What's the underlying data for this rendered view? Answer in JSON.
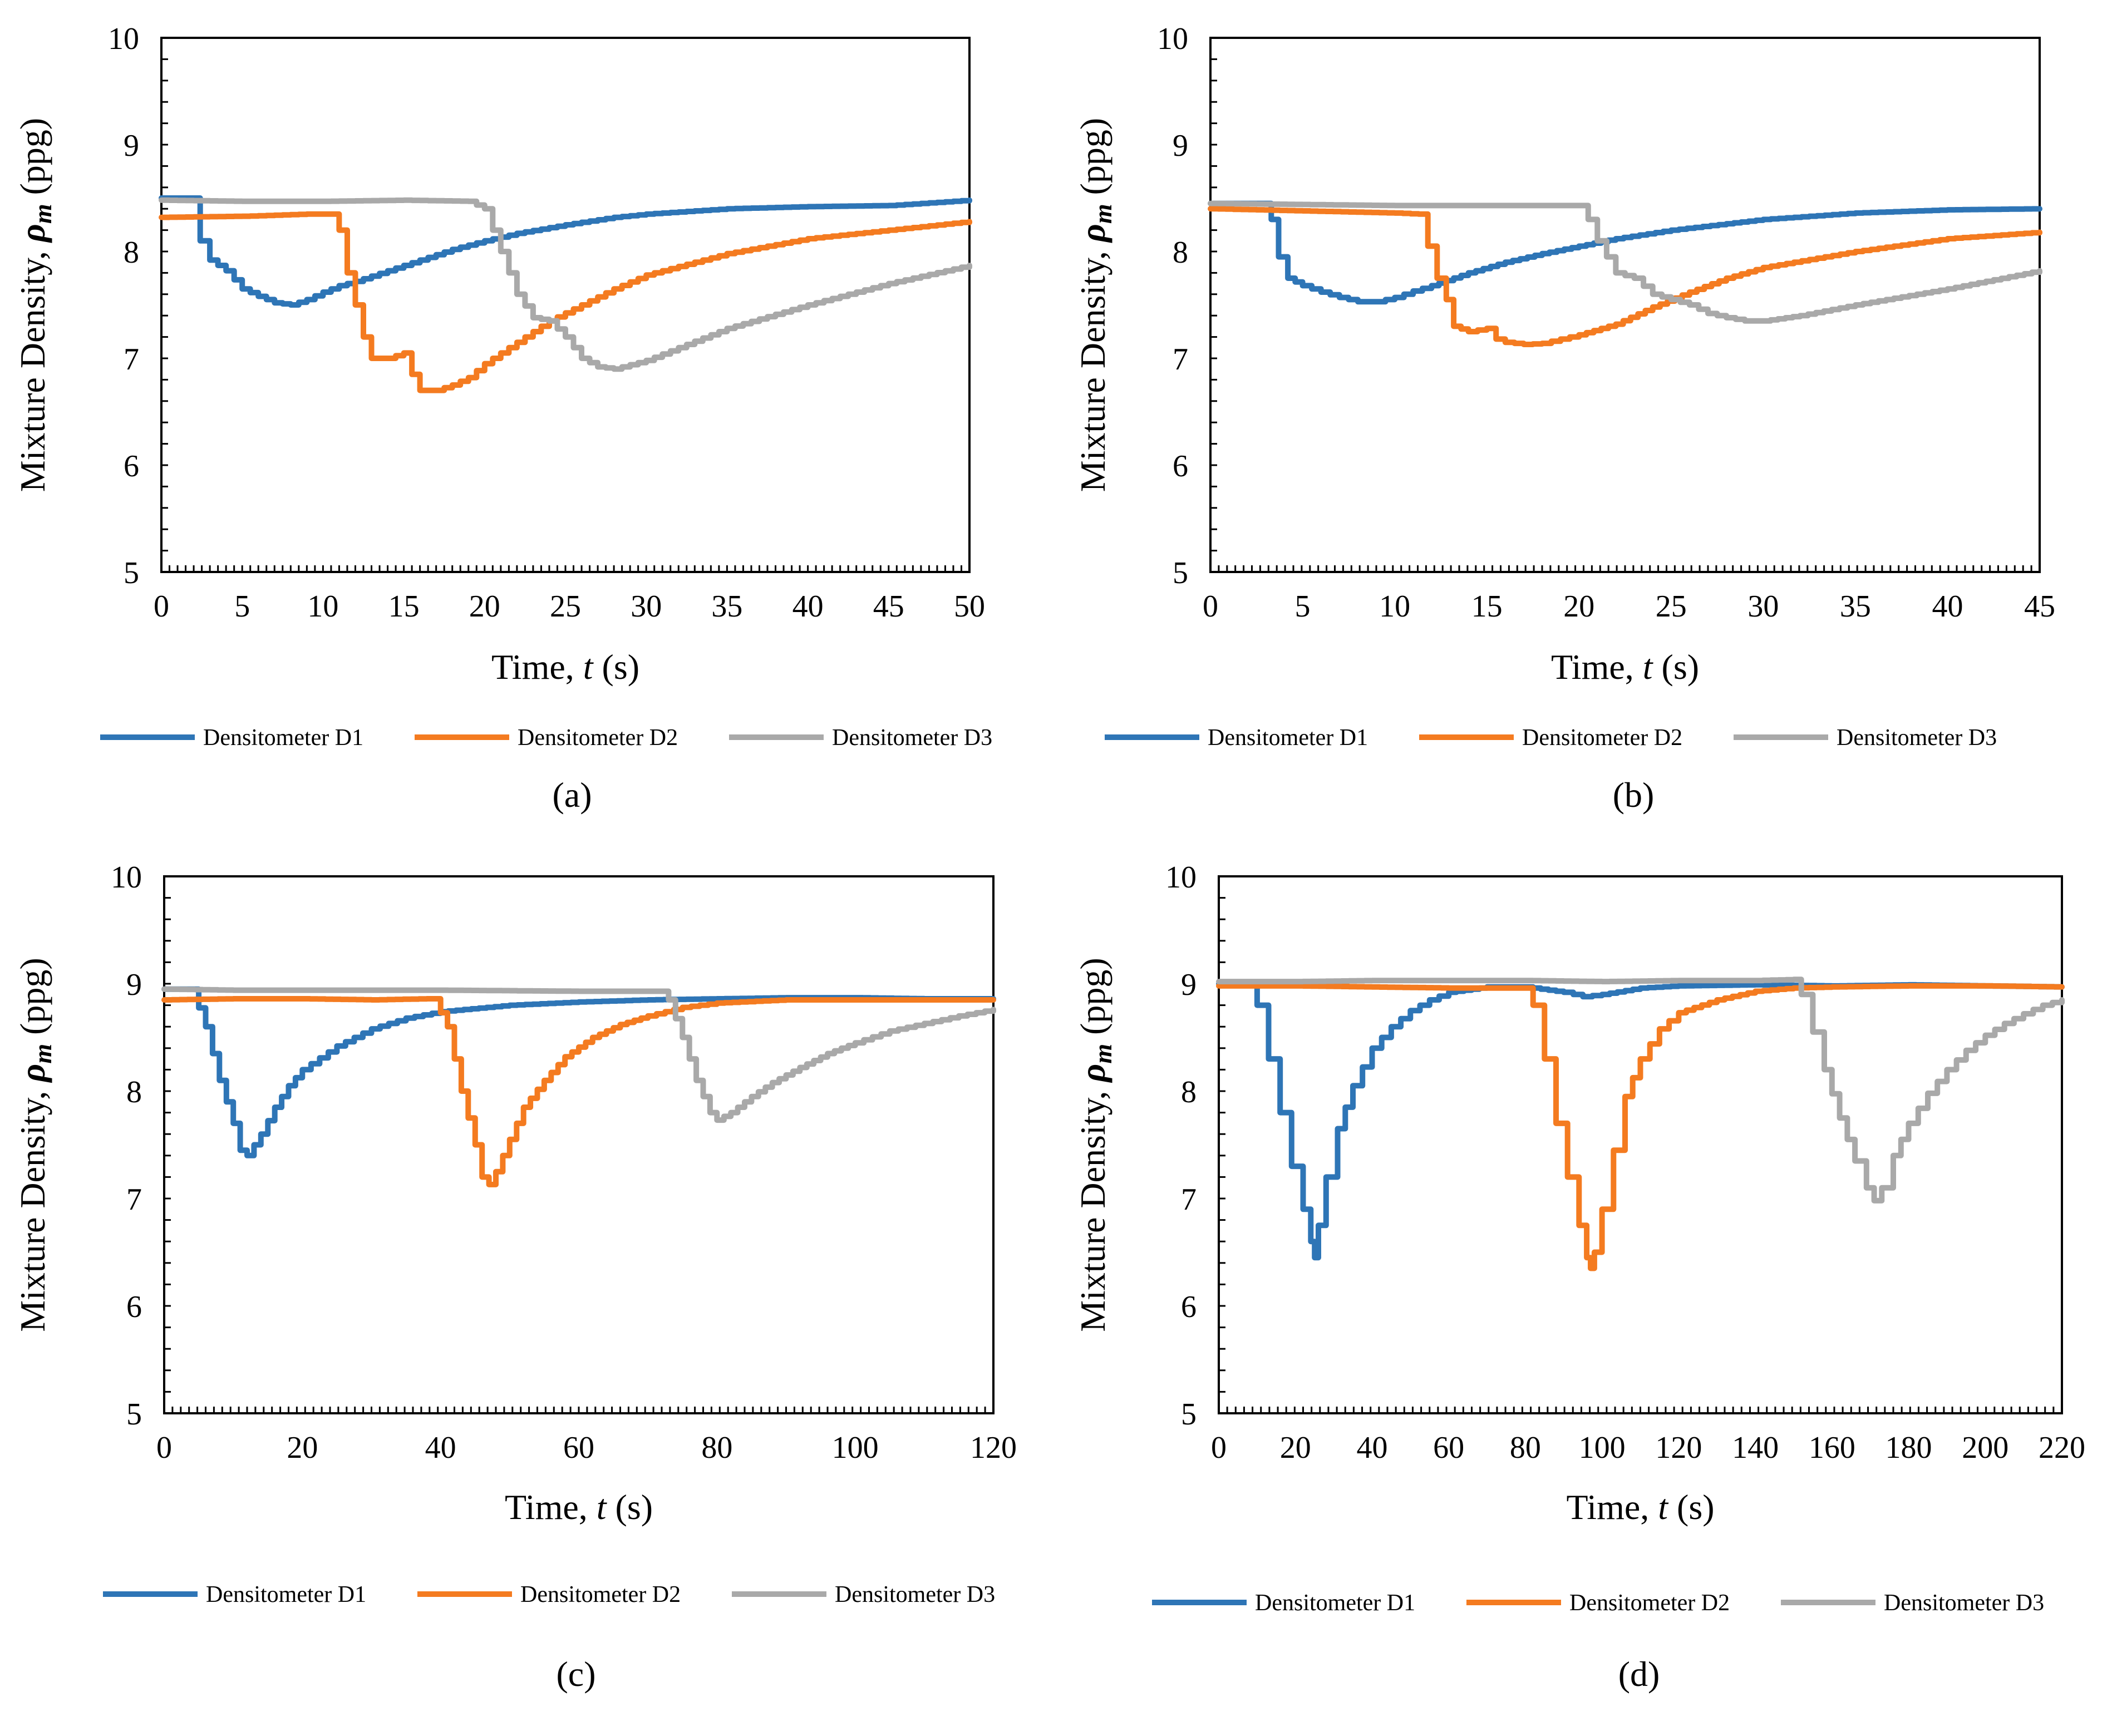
{
  "colors": {
    "d1": "#2E75B6",
    "d2": "#F47B20",
    "d3": "#A9A9A9"
  },
  "chart_data": [
    {
      "type": "line",
      "caption": "(a)",
      "ylabel": "Mixture Density, ρm (ppg)",
      "ylabel_prefix": "Mixture Density, ",
      "ylabel_symbol": "ρ",
      "ylabel_sub": "m",
      "ylabel_suffix": " (ppg)",
      "xlabel_prefix": "Time, ",
      "xlabel_var": "t",
      "xlabel_suffix": " (s)",
      "xlim": [
        0,
        50
      ],
      "ylim": [
        5,
        10
      ],
      "xticks": [
        0,
        5,
        10,
        15,
        20,
        25,
        30,
        35,
        40,
        45,
        50
      ],
      "yticks": [
        5,
        6,
        7,
        8,
        9,
        10
      ],
      "legend": [
        "Densitometer D1",
        "Densitometer D2",
        "Densitometer D3"
      ],
      "series": [
        {
          "name": "Densitometer D1",
          "color_key": "d1",
          "x": [
            0,
            2,
            2.4,
            3,
            4,
            5,
            6,
            7,
            8,
            9,
            10,
            11,
            12,
            14,
            16,
            18,
            20,
            22,
            25,
            28,
            30,
            35,
            40,
            45,
            50
          ],
          "y": [
            8.5,
            8.5,
            8.1,
            7.92,
            7.82,
            7.65,
            7.58,
            7.52,
            7.5,
            7.55,
            7.62,
            7.68,
            7.72,
            7.82,
            7.92,
            8.02,
            8.1,
            8.17,
            8.25,
            8.32,
            8.35,
            8.4,
            8.42,
            8.43,
            8.48
          ]
        },
        {
          "name": "Densitometer D2",
          "color_key": "d2",
          "x": [
            0,
            5,
            9,
            10.5,
            11,
            11.5,
            12,
            12.5,
            13,
            14,
            15,
            15.5,
            16,
            17,
            18,
            19,
            20,
            22,
            24,
            26,
            28,
            30,
            35,
            40,
            45,
            50
          ],
          "y": [
            8.32,
            8.33,
            8.35,
            8.35,
            8.2,
            7.8,
            7.5,
            7.2,
            7.0,
            7.0,
            7.05,
            6.85,
            6.7,
            6.7,
            6.75,
            6.82,
            6.95,
            7.15,
            7.35,
            7.5,
            7.65,
            7.78,
            7.98,
            8.12,
            8.2,
            8.28
          ]
        },
        {
          "name": "Densitometer D3",
          "color_key": "d3",
          "x": [
            0,
            5,
            10,
            15,
            19,
            20,
            20.5,
            21,
            21.5,
            22,
            23,
            24,
            25,
            26,
            27,
            28,
            30,
            32,
            35,
            40,
            45,
            50
          ],
          "y": [
            8.48,
            8.47,
            8.47,
            8.48,
            8.47,
            8.4,
            8.2,
            8.0,
            7.8,
            7.6,
            7.38,
            7.35,
            7.2,
            7.0,
            6.92,
            6.9,
            6.98,
            7.1,
            7.28,
            7.5,
            7.7,
            7.87
          ]
        }
      ]
    },
    {
      "type": "line",
      "caption": "(b)",
      "ylabel": "Mixture Density, ρm (ppg)",
      "ylabel_prefix": "Mixture Density, ",
      "ylabel_symbol": "ρ",
      "ylabel_sub": "m",
      "ylabel_suffix": " (ppg)",
      "xlabel_prefix": "Time, ",
      "xlabel_var": "t",
      "xlabel_suffix": " (s)",
      "xlim": [
        0,
        45
      ],
      "ylim": [
        5,
        10
      ],
      "xticks": [
        0,
        5,
        10,
        15,
        20,
        25,
        30,
        35,
        40,
        45
      ],
      "yticks": [
        5,
        6,
        7,
        8,
        9,
        10
      ],
      "legend": [
        "Densitometer D1",
        "Densitometer D2",
        "Densitometer D3"
      ],
      "series": [
        {
          "name": "Densitometer D1",
          "color_key": "d1",
          "x": [
            0,
            3,
            3.3,
            3.7,
            4.2,
            5,
            6,
            7,
            8,
            9,
            10,
            11,
            12,
            14,
            16,
            18,
            20,
            22,
            25,
            28,
            30,
            35,
            40,
            45
          ],
          "y": [
            8.45,
            8.45,
            8.3,
            7.95,
            7.75,
            7.68,
            7.62,
            7.57,
            7.53,
            7.53,
            7.57,
            7.63,
            7.68,
            7.8,
            7.9,
            7.98,
            8.05,
            8.12,
            8.2,
            8.26,
            8.3,
            8.36,
            8.39,
            8.4
          ]
        },
        {
          "name": "Densitometer D2",
          "color_key": "d2",
          "x": [
            0,
            5,
            10,
            11.3,
            11.8,
            12.3,
            12.8,
            13.2,
            14,
            15,
            15.5,
            16,
            17,
            18,
            19,
            20,
            22,
            24,
            26,
            28,
            30,
            35,
            40,
            45
          ],
          "y": [
            8.4,
            8.38,
            8.36,
            8.35,
            8.05,
            7.75,
            7.55,
            7.3,
            7.25,
            7.28,
            7.18,
            7.15,
            7.13,
            7.14,
            7.18,
            7.22,
            7.32,
            7.48,
            7.62,
            7.75,
            7.85,
            8.0,
            8.12,
            8.18
          ]
        },
        {
          "name": "Densitometer D3",
          "color_key": "d3",
          "x": [
            0,
            5,
            10,
            15,
            20,
            20.5,
            21,
            21.5,
            22,
            23,
            24,
            25,
            26,
            27,
            28,
            29,
            30,
            32,
            35,
            40,
            45
          ],
          "y": [
            8.45,
            8.44,
            8.43,
            8.43,
            8.43,
            8.3,
            8.1,
            7.95,
            7.8,
            7.75,
            7.6,
            7.55,
            7.5,
            7.42,
            7.38,
            7.35,
            7.35,
            7.4,
            7.5,
            7.65,
            7.82
          ]
        }
      ]
    },
    {
      "type": "line",
      "caption": "(c)",
      "ylabel": "Mixture Density, ρm (ppg)",
      "ylabel_prefix": "Mixture Density, ",
      "ylabel_symbol": "ρ",
      "ylabel_sub": "m",
      "ylabel_suffix": " (ppg)",
      "xlabel_prefix": "Time, ",
      "xlabel_var": "t",
      "xlabel_suffix": " (s)",
      "xlim": [
        0,
        120
      ],
      "ylim": [
        5,
        10
      ],
      "xticks": [
        0,
        20,
        40,
        60,
        80,
        100,
        120
      ],
      "yticks": [
        5,
        6,
        7,
        8,
        9,
        10
      ],
      "legend": [
        "Densitometer D1",
        "Densitometer D2",
        "Densitometer D3"
      ],
      "series": [
        {
          "name": "Densitometer D1",
          "color_key": "d1",
          "x": [
            0,
            4,
            6,
            8,
            10,
            11,
            12,
            14,
            16,
            18,
            20,
            25,
            30,
            35,
            40,
            50,
            60,
            70,
            80,
            90,
            100,
            110,
            120
          ],
          "y": [
            8.95,
            8.95,
            8.6,
            8.1,
            7.7,
            7.45,
            7.4,
            7.6,
            7.85,
            8.05,
            8.2,
            8.42,
            8.58,
            8.68,
            8.74,
            8.8,
            8.83,
            8.85,
            8.86,
            8.87,
            8.87,
            8.86,
            8.86
          ]
        },
        {
          "name": "Densitometer D2",
          "color_key": "d2",
          "x": [
            0,
            10,
            20,
            30,
            38,
            39,
            41,
            43,
            45,
            46,
            47,
            48,
            50,
            52,
            55,
            58,
            62,
            66,
            70,
            75,
            80,
            90,
            100,
            110,
            120
          ],
          "y": [
            8.85,
            8.86,
            8.86,
            8.85,
            8.86,
            8.86,
            8.6,
            8.0,
            7.5,
            7.2,
            7.13,
            7.25,
            7.55,
            7.85,
            8.1,
            8.32,
            8.5,
            8.62,
            8.7,
            8.78,
            8.82,
            8.85,
            8.85,
            8.85,
            8.85
          ]
        },
        {
          "name": "Densitometer D3",
          "color_key": "d3",
          "x": [
            0,
            10,
            20,
            40,
            60,
            72,
            73,
            75,
            77,
            79,
            80,
            82,
            85,
            88,
            92,
            96,
            100,
            105,
            110,
            115,
            120
          ],
          "y": [
            8.95,
            8.94,
            8.94,
            8.94,
            8.93,
            8.93,
            8.85,
            8.5,
            8.1,
            7.8,
            7.73,
            7.8,
            7.95,
            8.08,
            8.22,
            8.35,
            8.45,
            8.56,
            8.63,
            8.7,
            8.76
          ]
        }
      ]
    },
    {
      "type": "line",
      "caption": "(d)",
      "ylabel": "Mixture Density, ρm (ppg)",
      "ylabel_prefix": "Mixture Density, ",
      "ylabel_symbol": "ρ",
      "ylabel_sub": "m",
      "ylabel_suffix": " (ppg)",
      "xlabel_prefix": "Time, ",
      "xlabel_var": "t",
      "xlabel_suffix": " (s)",
      "xlim": [
        0,
        220
      ],
      "ylim": [
        5,
        10
      ],
      "xticks": [
        0,
        20,
        40,
        60,
        80,
        100,
        120,
        140,
        160,
        180,
        200,
        220
      ],
      "yticks": [
        5,
        6,
        7,
        8,
        9,
        10
      ],
      "legend": [
        "Densitometer D1",
        "Densitometer D2",
        "Densitometer D3"
      ],
      "series": [
        {
          "name": "Densitometer D1",
          "color_key": "d1",
          "x": [
            0,
            8,
            10,
            13,
            16,
            19,
            22,
            24,
            25,
            26,
            28,
            31,
            35,
            40,
            45,
            50,
            55,
            60,
            70,
            80,
            90,
            95,
            100,
            110,
            120,
            140,
            160,
            180,
            200,
            220
          ],
          "y": [
            9.0,
            9.0,
            8.8,
            8.3,
            7.8,
            7.3,
            6.9,
            6.6,
            6.45,
            6.75,
            7.2,
            7.65,
            8.05,
            8.4,
            8.6,
            8.75,
            8.85,
            8.92,
            8.97,
            8.97,
            8.92,
            8.88,
            8.9,
            8.96,
            8.98,
            8.99,
            8.98,
            8.99,
            8.98,
            8.97
          ]
        },
        {
          "name": "Densitometer D2",
          "color_key": "d2",
          "x": [
            0,
            20,
            40,
            60,
            80,
            82,
            85,
            88,
            91,
            94,
            96,
            97,
            98,
            100,
            103,
            106,
            110,
            115,
            120,
            130,
            140,
            150,
            160,
            180,
            200,
            220
          ],
          "y": [
            8.98,
            8.98,
            8.97,
            8.96,
            8.96,
            8.8,
            8.3,
            7.7,
            7.2,
            6.75,
            6.45,
            6.35,
            6.5,
            6.9,
            7.45,
            7.95,
            8.3,
            8.58,
            8.73,
            8.85,
            8.93,
            8.96,
            8.97,
            8.98,
            8.98,
            8.97
          ]
        },
        {
          "name": "Densitometer D3",
          "color_key": "d3",
          "x": [
            0,
            20,
            40,
            60,
            80,
            100,
            120,
            140,
            150,
            152,
            155,
            158,
            162,
            166,
            169,
            171,
            173,
            176,
            180,
            185,
            190,
            195,
            200,
            205,
            210,
            215,
            220
          ],
          "y": [
            9.02,
            9.02,
            9.03,
            9.03,
            9.03,
            9.02,
            9.03,
            9.03,
            9.04,
            8.9,
            8.55,
            8.2,
            7.75,
            7.35,
            7.1,
            6.98,
            7.1,
            7.4,
            7.7,
            7.98,
            8.2,
            8.38,
            8.52,
            8.63,
            8.72,
            8.8,
            8.85
          ]
        }
      ]
    }
  ]
}
